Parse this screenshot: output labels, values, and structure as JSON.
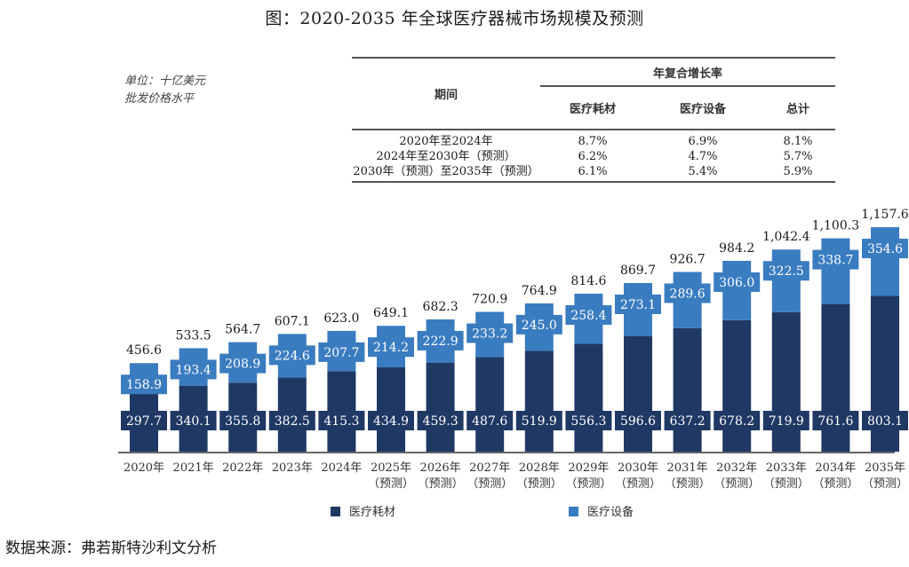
{
  "title": "图：2020-2035 年全球医疗器械市场规模及预测",
  "unit_note": {
    "line1": "单位：十亿美元",
    "line2": "批发价格水平"
  },
  "cagr_table": {
    "group_header": "年复合增长率",
    "period_header": "期间",
    "columns": [
      "医疗耗材",
      "医疗设备",
      "总计"
    ],
    "rows": [
      {
        "period": "2020年至2024年",
        "values": [
          "8.7%",
          "6.9%",
          "8.1%"
        ]
      },
      {
        "period": "2024年至2030年（预测）",
        "values": [
          "6.2%",
          "4.7%",
          "5.7%"
        ]
      },
      {
        "period": "2030年（预测）至2035年（预测）",
        "values": [
          "6.1%",
          "5.4%",
          "5.9%"
        ]
      }
    ]
  },
  "chart_data": {
    "type": "bar",
    "stacked": true,
    "title": "图：2020-2035 年全球医疗器械市场规模及预测",
    "xlabel": "",
    "ylabel": "单位：十亿美元",
    "categories": [
      "2020年",
      "2021年",
      "2022年",
      "2023年",
      "2024年",
      "2025年",
      "2026年",
      "2027年",
      "2028年",
      "2029年",
      "2030年",
      "2031年",
      "2032年",
      "2033年",
      "2034年",
      "2035年"
    ],
    "category_sublabels": [
      "",
      "",
      "",
      "",
      "",
      "（预测）",
      "（预测）",
      "（预测）",
      "（预测）",
      "（预测）",
      "（预测）",
      "（预测）",
      "（预测）",
      "（预测）",
      "（预测）",
      "（预测）"
    ],
    "series": [
      {
        "name": "医疗耗材",
        "color": "#1f3864",
        "values": [
          297.7,
          340.1,
          355.8,
          382.5,
          415.3,
          434.9,
          459.3,
          487.6,
          519.9,
          556.3,
          596.6,
          637.2,
          678.2,
          719.9,
          761.6,
          803.1
        ]
      },
      {
        "name": "医疗设备",
        "color": "#3a7cc0",
        "values": [
          158.9,
          193.4,
          208.9,
          224.6,
          207.7,
          214.2,
          222.9,
          233.2,
          245.0,
          258.4,
          273.1,
          289.6,
          306.0,
          322.5,
          338.7,
          354.6
        ]
      }
    ],
    "totals": [
      "456.6",
      "533.5",
      "564.7",
      "607.1",
      "623.0",
      "649.1",
      "682.3",
      "720.9",
      "764.9",
      "814.6",
      "869.7",
      "926.7",
      "984.2",
      "1,042.4",
      "1,100.3",
      "1,157.6"
    ],
    "segment_labels": {
      "医疗耗材": [
        "297.7",
        "340.1",
        "355.8",
        "382.5",
        "415.3",
        "434.9",
        "459.3",
        "487.6",
        "519.9",
        "556.3",
        "596.6",
        "637.2",
        "678.2",
        "719.9",
        "761.6",
        "803.1"
      ],
      "医疗设备": [
        "158.9",
        "193.4",
        "208.9",
        "224.6",
        "207.7",
        "214.2",
        "222.9",
        "233.2",
        "245.0",
        "258.4",
        "273.1",
        "289.6",
        "306.0",
        "322.5",
        "338.7",
        "354.6"
      ]
    },
    "ylim": [
      0,
      1200
    ],
    "grid": false,
    "legend": {
      "position": "bottom",
      "entries": [
        "医疗耗材",
        "医疗设备"
      ]
    }
  },
  "source": "数据来源：弗若斯特沙利文分析"
}
